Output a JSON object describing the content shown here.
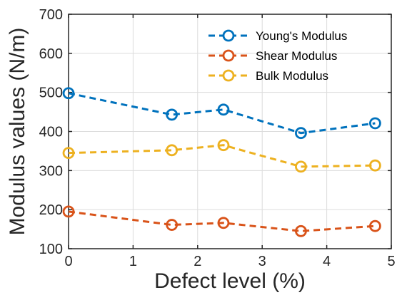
{
  "chart_data": {
    "type": "line",
    "title": "",
    "xlabel": "Defect level (%)",
    "ylabel": "Modulus values (N/m)",
    "xlim": [
      0,
      5
    ],
    "ylim": [
      100,
      700
    ],
    "xticks": [
      0,
      1,
      2,
      3,
      4,
      5
    ],
    "yticks": [
      100,
      200,
      300,
      400,
      500,
      600,
      700
    ],
    "grid": true,
    "legend_position": "top-right",
    "x": [
      0,
      1.6,
      2.4,
      3.6,
      4.75
    ],
    "series": [
      {
        "name": "Young's Modulus",
        "color": "#0072BD",
        "line_style": "dashed",
        "marker": "circle",
        "values": [
          498,
          443,
          456,
          396,
          421
        ]
      },
      {
        "name": "Shear Modulus",
        "color": "#D95319",
        "line_style": "dashed",
        "marker": "circle",
        "values": [
          195,
          161,
          166,
          145,
          158
        ]
      },
      {
        "name": "Bulk Modulus",
        "color": "#EDB120",
        "line_style": "dashed",
        "marker": "circle",
        "values": [
          345,
          352,
          365,
          310,
          313
        ]
      }
    ]
  }
}
